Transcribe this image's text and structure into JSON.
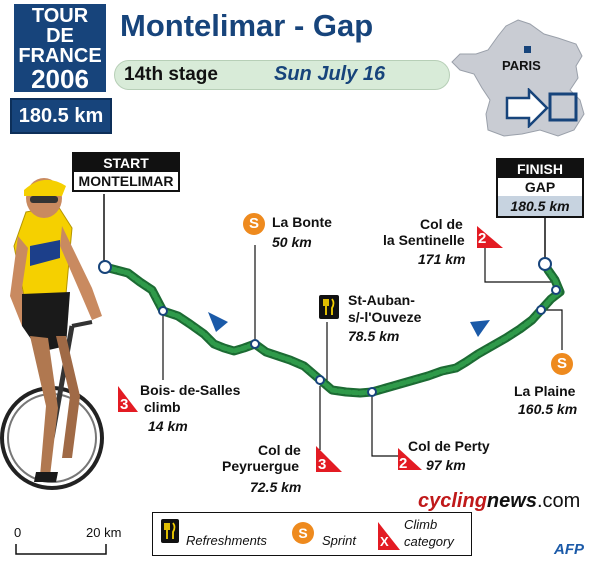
{
  "header": {
    "badge": [
      "TOUR",
      "DE",
      "FRANCE",
      "2006"
    ],
    "distance": "180.5 km",
    "title": "Montelimar - Gap",
    "stage_label": "14th stage",
    "date": "Sun July 16"
  },
  "map": {
    "city": "PARIS"
  },
  "route": {
    "start": {
      "head": "START",
      "town": "MONTELIMAR"
    },
    "finish": {
      "head": "FINISH",
      "town": "GAP",
      "km": "180.5 km"
    },
    "points": [
      {
        "name": "La Bonte",
        "km": "50 km",
        "type": "sprint",
        "symbol": "S"
      },
      {
        "name": "Col de la Sentinelle",
        "name_lines": [
          "Col de",
          "la Sentinelle"
        ],
        "km": "171 km",
        "type": "climb",
        "category": "2"
      },
      {
        "name": "St-Auban-s/-l'Ouveze",
        "name_lines": [
          "St-Auban-",
          "s/-l'Ouveze"
        ],
        "km": "78.5 km",
        "type": "refreshments"
      },
      {
        "name": "Bois-de-Salles climb",
        "name_lines": [
          "Bois- de-Salles",
          "climb"
        ],
        "km": "14 km",
        "type": "climb",
        "category": "3"
      },
      {
        "name": "Col de Peyruergue",
        "name_lines": [
          "Col de",
          "Peyruergue"
        ],
        "km": "72.5 km",
        "type": "climb",
        "category": "3"
      },
      {
        "name": "Col de Perty",
        "km": "97 km",
        "type": "climb",
        "category": "2"
      },
      {
        "name": "La Plaine",
        "km": "160.5 km",
        "type": "sprint",
        "symbol": "S"
      }
    ]
  },
  "brand": {
    "cycling": "cycling",
    "news": "news",
    "com": ".com"
  },
  "legend": {
    "refreshments": "Refreshments",
    "sprint": "Sprint",
    "sprint_symbol": "S",
    "climb_symbol": "X",
    "climb_lines": [
      "Climb",
      "category"
    ]
  },
  "scale": {
    "zero": "0",
    "max": "20 km"
  },
  "credit": "AFP",
  "colors": {
    "navy": "#17447b",
    "route_green": "#1e8b3f",
    "sprint_orange": "#ee8a1e",
    "climb_red": "#e31b23",
    "pill_green": "#d8ebd8",
    "arrow_blue": "#1b5aa8",
    "brand_red": "#c0191a"
  }
}
